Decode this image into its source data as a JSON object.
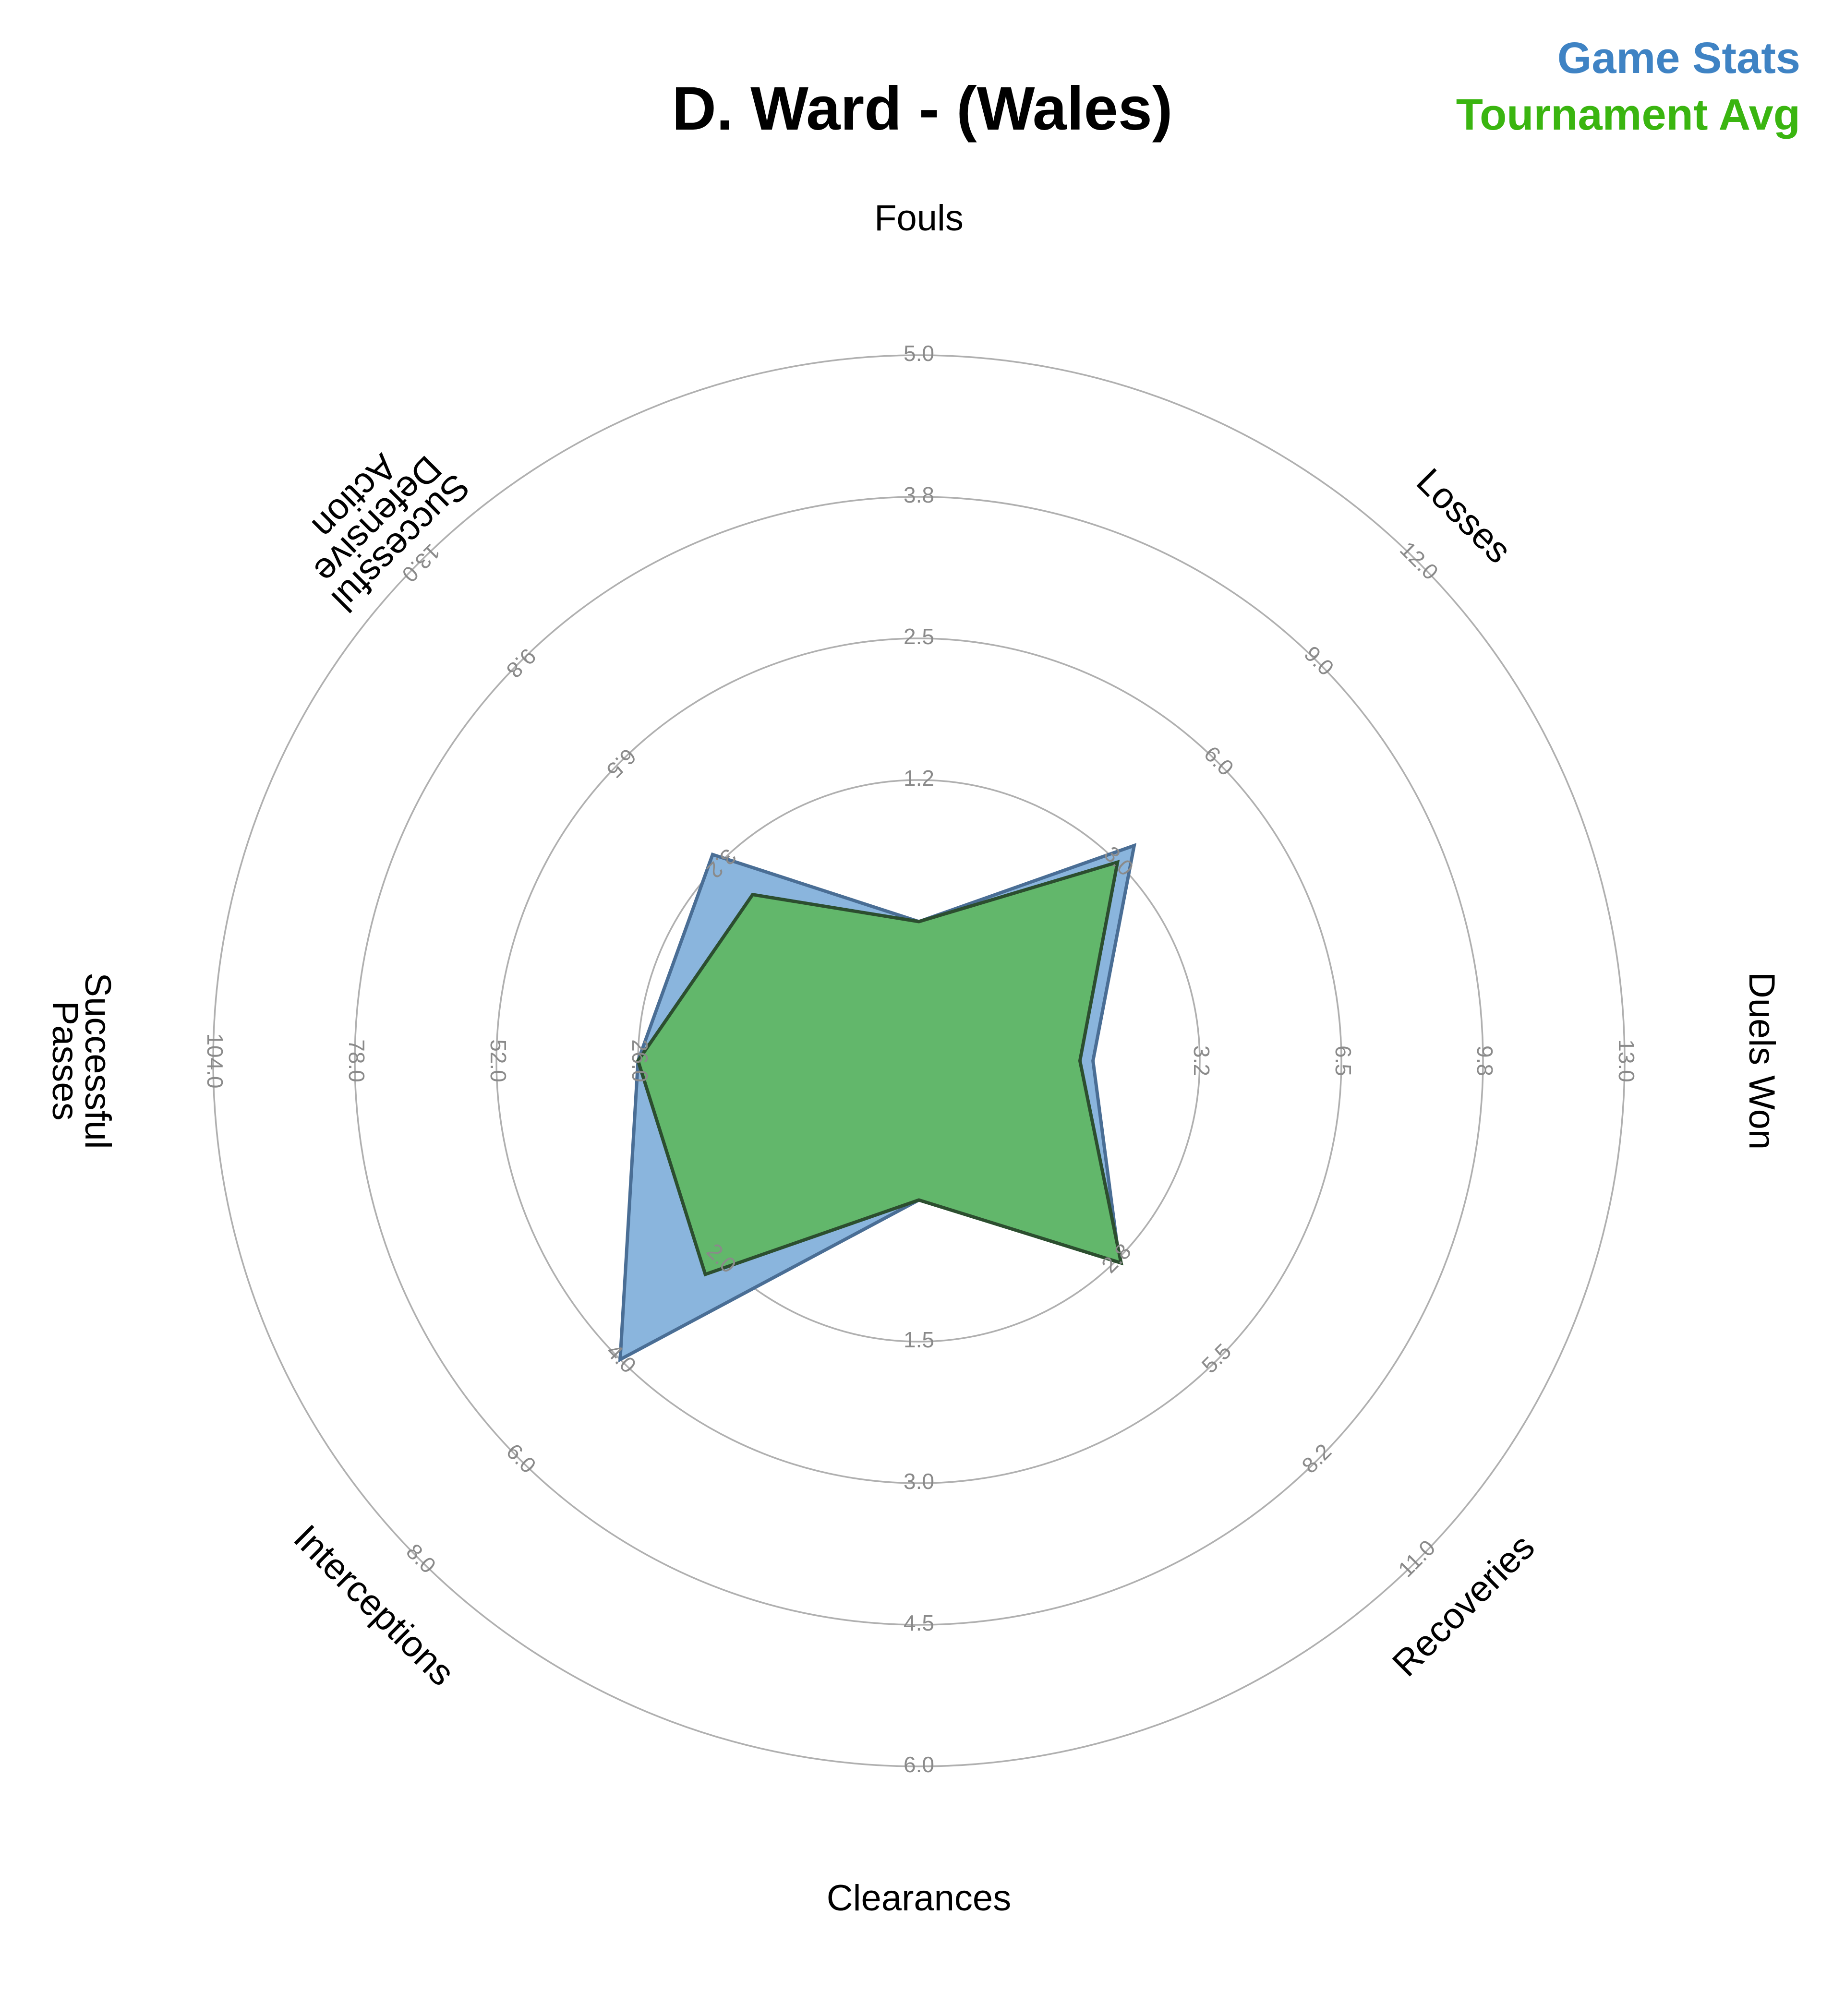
{
  "chart_data": {
    "type": "radar",
    "title": "D. Ward - (Wales)",
    "legend": {
      "placement": "top-right",
      "entries": [
        {
          "label": "Game Stats",
          "color": "#3f83c4"
        },
        {
          "label": "Tournament Avg",
          "color": "#3ab510"
        }
      ]
    },
    "axes": [
      {
        "label": "Fouls",
        "ticks": [
          "1.2",
          "2.5",
          "3.8",
          "5.0"
        ],
        "max": 5.0
      },
      {
        "label": "Losses",
        "ticks": [
          "3.0",
          "6.0",
          "9.0",
          "12.0"
        ],
        "max": 12.0
      },
      {
        "label": "Duels Won",
        "ticks": [
          "3.2",
          "6.5",
          "9.8",
          "13.0"
        ],
        "max": 13.0
      },
      {
        "label": "Recoveries",
        "ticks": [
          "2.8",
          "5.5",
          "8.2",
          "11.0"
        ],
        "max": 11.0
      },
      {
        "label": "Clearances",
        "ticks": [
          "1.5",
          "3.0",
          "4.5",
          "6.0"
        ],
        "max": 6.0
      },
      {
        "label": "Interceptions",
        "ticks": [
          "2.0",
          "4.0",
          "6.0",
          "8.0"
        ],
        "max": 8.0
      },
      {
        "label": "Successful Passes",
        "ticks": [
          "26.0",
          "52.0",
          "78.0",
          "104.0"
        ],
        "max": 104.0
      },
      {
        "label": "Successful Defensive Action",
        "ticks": [
          "3.2",
          "6.5",
          "9.8",
          "13.0"
        ],
        "max": 13.0
      }
    ],
    "series": [
      {
        "name": "Game Stats",
        "fill": "#8ab5dd",
        "stroke": "#4a6e95",
        "values": [
          0,
          3.5,
          0.8,
          2.8,
          0,
          4.0,
          26.0,
          3.5
        ]
      },
      {
        "name": "Tournament Avg",
        "fill": "#62b76b",
        "stroke": "#2c4e2f",
        "values": [
          0,
          3.0,
          0.5,
          2.85,
          0,
          2.3,
          26.0,
          2.2
        ]
      }
    ],
    "grid": true,
    "ring_count": 5
  }
}
